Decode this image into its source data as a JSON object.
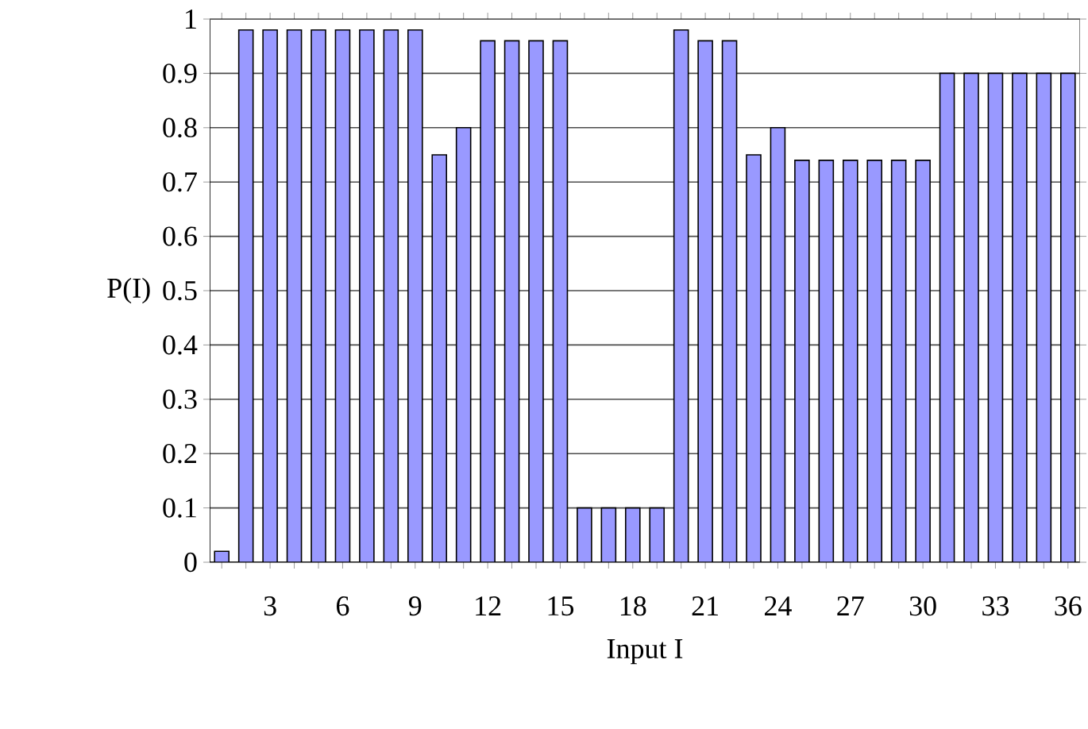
{
  "chart_data": {
    "type": "bar",
    "xlabel": "Input I",
    "ylabel": "P(I)",
    "categories": [
      null,
      null,
      "3",
      null,
      null,
      "6",
      null,
      null,
      "9",
      null,
      null,
      "12",
      null,
      null,
      "15",
      null,
      null,
      "18",
      null,
      null,
      "21",
      null,
      null,
      "24",
      null,
      null,
      "27",
      null,
      null,
      "30",
      null,
      null,
      "33",
      null,
      null,
      "36"
    ],
    "values": [
      0.02,
      0.98,
      0.98,
      0.98,
      0.98,
      0.98,
      0.98,
      0.98,
      0.98,
      0.75,
      0.8,
      0.96,
      0.96,
      0.96,
      0.96,
      0.1,
      0.1,
      0.1,
      0.1,
      0.98,
      0.96,
      0.96,
      0.75,
      0.8,
      0.74,
      0.74,
      0.74,
      0.74,
      0.74,
      0.74,
      0.9,
      0.9,
      0.9,
      0.9,
      0.9,
      0.9
    ],
    "color": "#9999ff",
    "ylim": [
      0,
      1
    ],
    "yticks": [
      0,
      0.1,
      0.2,
      0.3,
      0.4,
      0.5,
      0.6,
      0.7,
      0.8,
      0.9,
      1
    ],
    "grid": "y"
  }
}
